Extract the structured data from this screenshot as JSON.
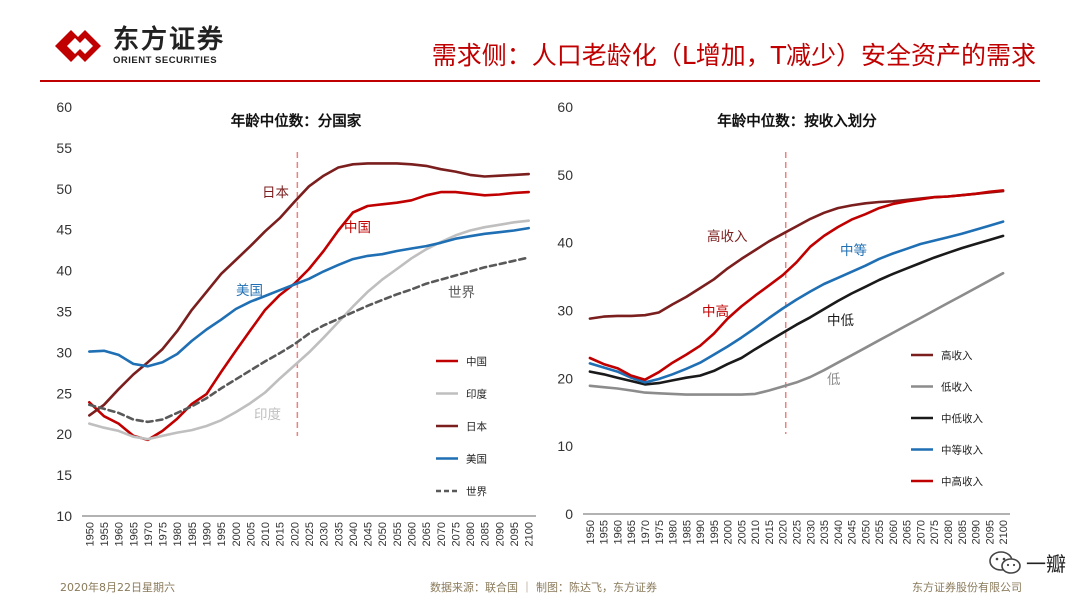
{
  "header": {
    "logo_cn": "东方证券",
    "logo_en": "ORIENT SECURITIES",
    "title": "需求侧：人口老龄化（L增加，T减少）安全资产的需求"
  },
  "footer": {
    "date": "2020年8月22日星期六",
    "source": "数据来源：联合国 ｜ 制图：陈达飞，东方证券",
    "company": "东方证券股份有限公司"
  },
  "watermark": {
    "text": "一瓣"
  },
  "colors": {
    "accent": "#c00000",
    "rule": "#c00000"
  },
  "chart_data": [
    {
      "type": "line",
      "title": "年龄中位数：分国家",
      "ylim": [
        10,
        60
      ],
      "yticks": [
        10,
        15,
        20,
        25,
        30,
        35,
        40,
        45,
        50,
        55,
        60
      ],
      "x": [
        "1950",
        "1955",
        "1960",
        "1965",
        "1970",
        "1975",
        "1980",
        "1985",
        "1990",
        "1995",
        "2000",
        "2005",
        "2010",
        "2015",
        "2020",
        "2025",
        "2030",
        "2035",
        "2040",
        "2045",
        "2050",
        "2055",
        "2060",
        "2065",
        "2070",
        "2075",
        "2080",
        "2085",
        "2090",
        "2095",
        "2100"
      ],
      "divider_at": "2020",
      "series": [
        {
          "name": "中国",
          "color": "#c00000",
          "dash": false,
          "values": [
            23.9,
            22.2,
            21.3,
            19.8,
            19.3,
            20.4,
            21.9,
            23.7,
            24.9,
            27.6,
            30.2,
            32.7,
            35.2,
            37.0,
            38.4,
            40.2,
            42.4,
            44.9,
            47.1,
            47.9,
            48.1,
            48.3,
            48.6,
            49.2,
            49.6,
            49.6,
            49.4,
            49.2,
            49.3,
            49.5,
            49.6
          ]
        },
        {
          "name": "印度",
          "color": "#bfbfbf",
          "dash": false,
          "values": [
            21.3,
            20.8,
            20.4,
            19.7,
            19.4,
            19.8,
            20.2,
            20.5,
            21.0,
            21.7,
            22.7,
            23.8,
            25.1,
            26.8,
            28.4,
            30.0,
            31.8,
            33.7,
            35.6,
            37.4,
            38.9,
            40.2,
            41.5,
            42.6,
            43.5,
            44.3,
            44.9,
            45.3,
            45.6,
            45.9,
            46.1
          ]
        },
        {
          "name": "日本",
          "color": "#7b1e1e",
          "dash": false,
          "values": [
            22.3,
            23.6,
            25.5,
            27.3,
            28.8,
            30.4,
            32.6,
            35.2,
            37.4,
            39.6,
            41.3,
            43.0,
            44.8,
            46.4,
            48.4,
            50.3,
            51.6,
            52.6,
            53.0,
            53.1,
            53.1,
            53.1,
            53.0,
            52.8,
            52.4,
            52.1,
            51.7,
            51.5,
            51.6,
            51.7,
            51.8
          ]
        },
        {
          "name": "美国",
          "color": "#1f6fb4",
          "dash": false,
          "values": [
            30.1,
            30.2,
            29.7,
            28.6,
            28.3,
            28.8,
            29.8,
            31.4,
            32.8,
            34.0,
            35.3,
            36.2,
            36.9,
            37.6,
            38.3,
            39.0,
            39.9,
            40.7,
            41.4,
            41.8,
            42.0,
            42.4,
            42.7,
            43.0,
            43.4,
            43.9,
            44.2,
            44.5,
            44.7,
            44.9,
            45.2
          ]
        },
        {
          "name": "世界",
          "color": "#595959",
          "dash": true,
          "values": [
            23.6,
            23.1,
            22.6,
            21.8,
            21.5,
            21.8,
            22.6,
            23.4,
            24.4,
            25.6,
            26.7,
            27.8,
            28.9,
            29.9,
            31.0,
            32.3,
            33.3,
            34.1,
            34.9,
            35.7,
            36.4,
            37.1,
            37.7,
            38.4,
            38.9,
            39.4,
            39.9,
            40.4,
            40.8,
            41.2,
            41.6
          ]
        }
      ],
      "annotations": [
        {
          "text": "日本",
          "series": "日本"
        },
        {
          "text": "中国",
          "series": "中国"
        },
        {
          "text": "美国",
          "series": "美国"
        },
        {
          "text": "世界",
          "series": "世界"
        },
        {
          "text": "印度",
          "series": "印度"
        }
      ],
      "legend": [
        "中国",
        "印度",
        "日本",
        "美国",
        "世界"
      ]
    },
    {
      "type": "line",
      "title": "年龄中位数：按收入划分",
      "ylim": [
        0,
        60
      ],
      "yticks": [
        0,
        10,
        20,
        30,
        40,
        50,
        60
      ],
      "x": [
        "1950",
        "1955",
        "1960",
        "1965",
        "1970",
        "1975",
        "1980",
        "1985",
        "1990",
        "1995",
        "2000",
        "2005",
        "2010",
        "2015",
        "2020",
        "2025",
        "2030",
        "2035",
        "2040",
        "2045",
        "2050",
        "2055",
        "2060",
        "2065",
        "2070",
        "2075",
        "2080",
        "2085",
        "2090",
        "2095",
        "2100"
      ],
      "divider_at": "2020",
      "series": [
        {
          "name": "高收入",
          "color": "#7b1e1e",
          "dash": false,
          "values": [
            28.8,
            29.1,
            29.2,
            29.2,
            29.3,
            29.7,
            30.9,
            32.0,
            33.3,
            34.6,
            36.2,
            37.6,
            38.9,
            40.2,
            41.3,
            42.4,
            43.5,
            44.4,
            45.1,
            45.5,
            45.8,
            46.0,
            46.1,
            46.3,
            46.5,
            46.7,
            46.8,
            47.0,
            47.2,
            47.4,
            47.6
          ]
        },
        {
          "name": "低收入",
          "color": "#8c8c8c",
          "dash": false,
          "values": [
            18.9,
            18.7,
            18.5,
            18.2,
            17.9,
            17.8,
            17.7,
            17.6,
            17.6,
            17.6,
            17.6,
            17.6,
            17.7,
            18.2,
            18.8,
            19.4,
            20.2,
            21.2,
            22.3,
            23.4,
            24.5,
            25.6,
            26.7,
            27.8,
            28.9,
            30.0,
            31.1,
            32.2,
            33.3,
            34.4,
            35.5
          ]
        },
        {
          "name": "中低收入",
          "color": "#1a1a1a",
          "dash": false,
          "values": [
            21.0,
            20.6,
            20.1,
            19.6,
            19.1,
            19.3,
            19.7,
            20.1,
            20.4,
            21.1,
            22.1,
            23.0,
            24.3,
            25.5,
            26.7,
            27.9,
            29.0,
            30.2,
            31.4,
            32.5,
            33.5,
            34.5,
            35.4,
            36.2,
            37.0,
            37.8,
            38.5,
            39.2,
            39.8,
            40.4,
            41.0
          ]
        },
        {
          "name": "中等收入",
          "color": "#1f6fb4",
          "dash": false,
          "values": [
            22.2,
            21.6,
            21.0,
            20.1,
            19.4,
            19.9,
            20.6,
            21.4,
            22.3,
            23.5,
            24.7,
            26.0,
            27.4,
            28.9,
            30.3,
            31.6,
            32.8,
            33.9,
            34.8,
            35.7,
            36.6,
            37.6,
            38.4,
            39.1,
            39.8,
            40.3,
            40.8,
            41.3,
            41.9,
            42.5,
            43.1
          ]
        },
        {
          "name": "中高收入",
          "color": "#c00000",
          "dash": false,
          "values": [
            23.0,
            22.1,
            21.5,
            20.4,
            19.8,
            20.9,
            22.3,
            23.5,
            24.8,
            26.6,
            28.8,
            30.6,
            32.2,
            33.7,
            35.2,
            37.1,
            39.4,
            41.0,
            42.3,
            43.4,
            44.2,
            45.1,
            45.7,
            46.1,
            46.4,
            46.7,
            46.8,
            47.0,
            47.2,
            47.5,
            47.7
          ]
        }
      ],
      "annotations": [
        {
          "text": "高收入",
          "series": "高收入"
        },
        {
          "text": "中等",
          "series": "中等收入"
        },
        {
          "text": "中高",
          "series": "中高收入"
        },
        {
          "text": "中低",
          "series": "中低收入"
        },
        {
          "text": "低",
          "series": "低收入"
        }
      ],
      "legend": [
        "高收入",
        "低收入",
        "中低收入",
        "中等收入",
        "中高收入"
      ]
    }
  ]
}
